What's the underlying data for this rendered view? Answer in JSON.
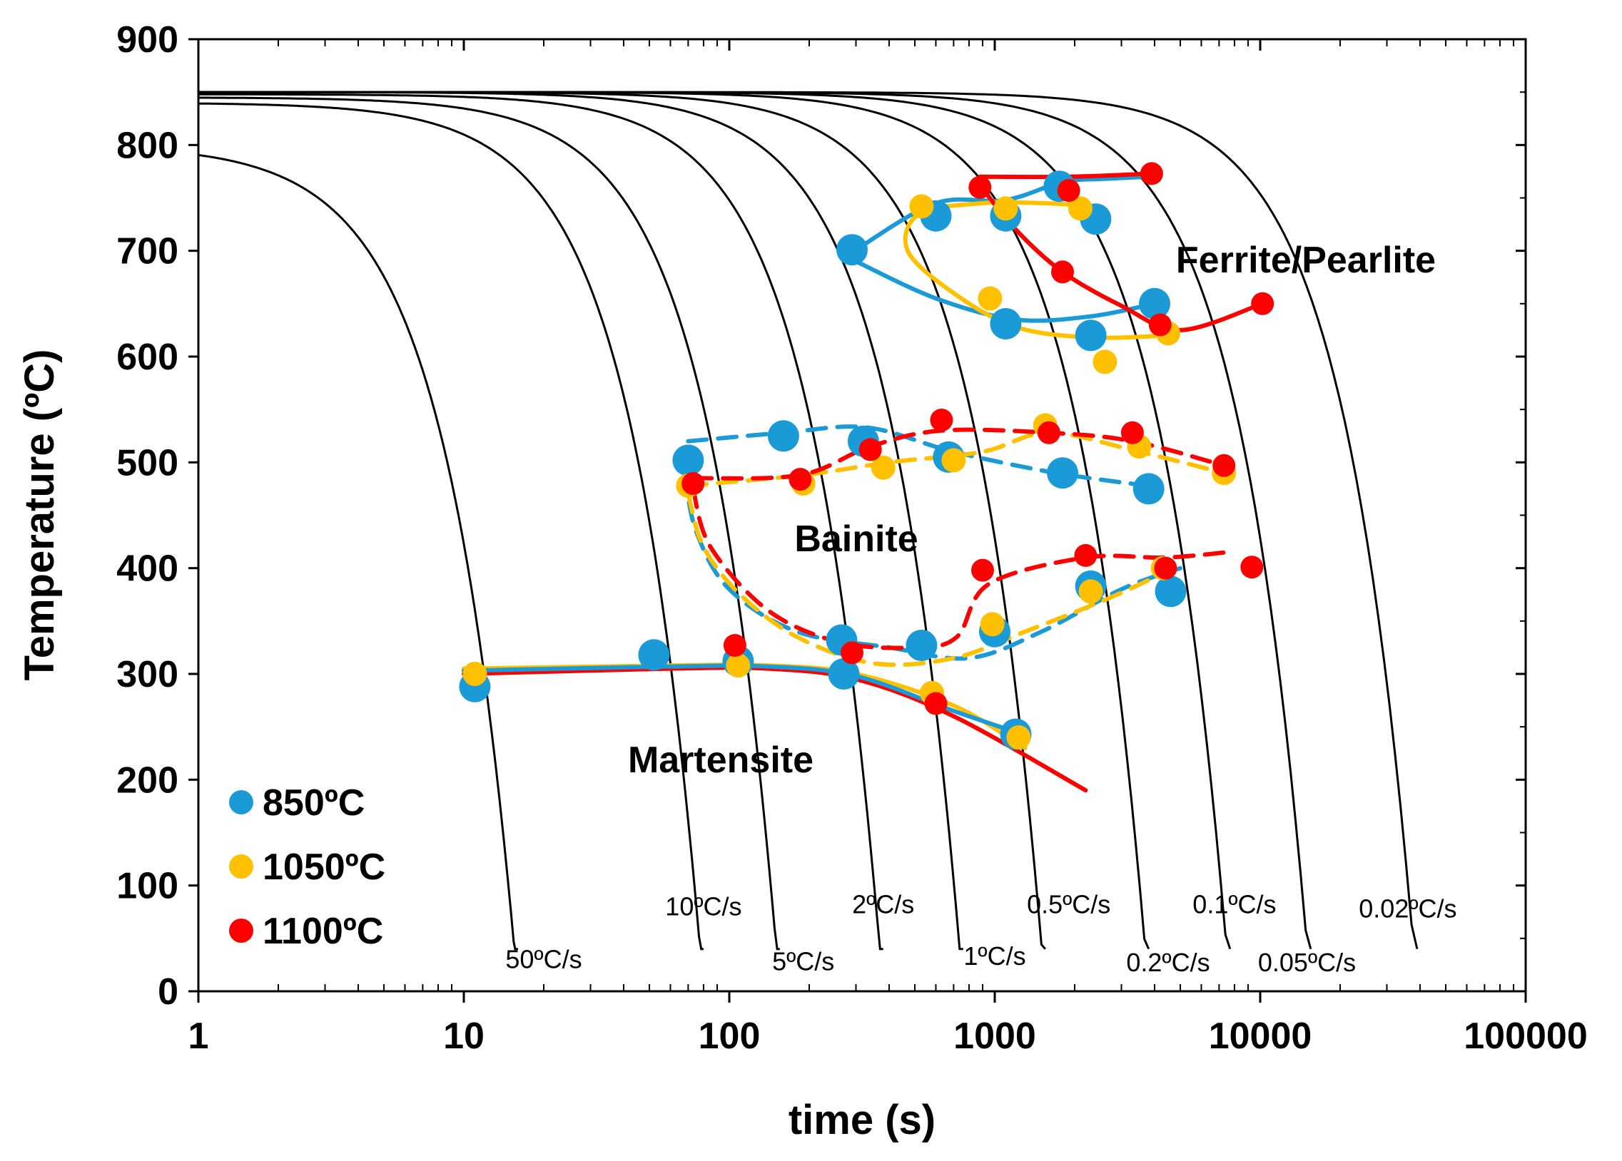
{
  "chart_data": {
    "type": "line",
    "title": "",
    "xlabel": "time (s)",
    "ylabel": "Temperature (ºC)",
    "xscale": "log",
    "xlim": [
      1,
      100000
    ],
    "ylim": [
      0,
      900
    ],
    "x_ticks": [
      1,
      10,
      100,
      1000,
      10000,
      100000
    ],
    "x_tick_labels": [
      "1",
      "10",
      "100",
      "1000",
      "10000",
      "100000"
    ],
    "y_ticks": [
      0,
      100,
      200,
      300,
      400,
      500,
      600,
      700,
      800,
      900
    ],
    "y_tick_labels": [
      "0",
      "100",
      "200",
      "300",
      "400",
      "500",
      "600",
      "700",
      "800",
      "900"
    ],
    "cooling_curves": [
      {
        "label": "50ºC/s",
        "t_end": 16,
        "T_start": 800,
        "label_t": 20,
        "label_T": 30
      },
      {
        "label": "10ºC/s",
        "t_end": 80,
        "T_start": 840,
        "label_t": 80,
        "label_T": 80
      },
      {
        "label": "5ºC/s",
        "t_end": 155,
        "T_start": 845,
        "label_t": 190,
        "label_T": 28
      },
      {
        "label": "2ºC/s",
        "t_end": 380,
        "T_start": 848,
        "label_t": 380,
        "label_T": 82
      },
      {
        "label": "1ºC/s",
        "t_end": 760,
        "T_start": 850,
        "label_t": 1000,
        "label_T": 33
      },
      {
        "label": "0.5ºC/s",
        "t_end": 1550,
        "T_start": 850,
        "label_t": 1900,
        "label_T": 82
      },
      {
        "label": "0.2ºC/s",
        "t_end": 3800,
        "T_start": 850,
        "label_t": 4500,
        "label_T": 27
      },
      {
        "label": "0.1ºC/s",
        "t_end": 7700,
        "T_start": 850,
        "label_t": 8000,
        "label_T": 82
      },
      {
        "label": "0.05ºC/s",
        "t_end": 15500,
        "T_start": 850,
        "label_t": 15000,
        "label_T": 27
      },
      {
        "label": "0.02ºC/s",
        "t_end": 39000,
        "T_start": 850,
        "label_t": 36000,
        "label_T": 78
      }
    ],
    "series": [
      {
        "name": "850ºC",
        "color": "#1a9ad6",
        "points": [
          [
            11,
            288
          ],
          [
            52,
            318
          ],
          [
            108,
            312
          ],
          [
            265,
            332
          ],
          [
            270,
            300
          ],
          [
            530,
            327
          ],
          [
            1000,
            340
          ],
          [
            1200,
            243
          ],
          [
            70,
            502
          ],
          [
            160,
            525
          ],
          [
            320,
            520
          ],
          [
            670,
            505
          ],
          [
            1800,
            490
          ],
          [
            3800,
            475
          ],
          [
            2300,
            383
          ],
          [
            4600,
            378
          ],
          [
            290,
            701
          ],
          [
            600,
            733
          ],
          [
            1100,
            733
          ],
          [
            1750,
            761
          ],
          [
            2400,
            730
          ],
          [
            1100,
            631
          ],
          [
            2300,
            620
          ],
          [
            4000,
            650
          ]
        ]
      },
      {
        "name": "1050ºC",
        "color": "#ffc000",
        "points": [
          [
            11,
            300
          ],
          [
            108,
            308
          ],
          [
            580,
            282
          ],
          [
            1230,
            240
          ],
          [
            70,
            478
          ],
          [
            190,
            480
          ],
          [
            380,
            495
          ],
          [
            700,
            502
          ],
          [
            1550,
            535
          ],
          [
            3500,
            515
          ],
          [
            7300,
            490
          ],
          [
            980,
            347
          ],
          [
            2300,
            378
          ],
          [
            4300,
            400
          ],
          [
            530,
            742
          ],
          [
            1100,
            740
          ],
          [
            2100,
            740
          ],
          [
            960,
            655
          ],
          [
            2600,
            595
          ],
          [
            4500,
            622
          ]
        ]
      },
      {
        "name": "1100ºC",
        "color": "#ff0000",
        "points": [
          [
            105,
            327
          ],
          [
            290,
            320
          ],
          [
            600,
            272
          ],
          [
            73,
            480
          ],
          [
            185,
            484
          ],
          [
            340,
            512
          ],
          [
            630,
            540
          ],
          [
            1600,
            528
          ],
          [
            3300,
            528
          ],
          [
            7300,
            497
          ],
          [
            900,
            398
          ],
          [
            2200,
            412
          ],
          [
            4400,
            400
          ],
          [
            9300,
            401
          ],
          [
            880,
            760
          ],
          [
            1900,
            757
          ],
          [
            3900,
            773
          ],
          [
            1800,
            680
          ],
          [
            4200,
            630
          ],
          [
            10200,
            650
          ]
        ]
      }
    ],
    "boundaries": [
      {
        "color": "#ff0000",
        "dashed": false,
        "pts": [
          [
            10,
            300
          ],
          [
            60,
            305
          ],
          [
            140,
            305
          ],
          [
            300,
            295
          ],
          [
            700,
            260
          ],
          [
            2200,
            190
          ]
        ]
      },
      {
        "color": "#ffc000",
        "dashed": false,
        "pts": [
          [
            10,
            305
          ],
          [
            60,
            308
          ],
          [
            140,
            308
          ],
          [
            300,
            300
          ],
          [
            700,
            270
          ],
          [
            1300,
            230
          ]
        ]
      },
      {
        "color": "#1a9ad6",
        "dashed": false,
        "pts": [
          [
            10,
            303
          ],
          [
            60,
            307
          ],
          [
            140,
            307
          ],
          [
            300,
            298
          ],
          [
            700,
            265
          ],
          [
            1200,
            245
          ]
        ]
      },
      {
        "color": "#1a9ad6",
        "dashed": true,
        "pts": [
          [
            70,
            520
          ],
          [
            160,
            528
          ],
          [
            330,
            533
          ],
          [
            700,
            510
          ],
          [
            1700,
            490
          ],
          [
            4000,
            477
          ]
        ]
      },
      {
        "color": "#1a9ad6",
        "dashed": true,
        "pts": [
          [
            68,
            490
          ],
          [
            75,
            435
          ],
          [
            100,
            380
          ],
          [
            180,
            340
          ],
          [
            400,
            325
          ],
          [
            800,
            315
          ],
          [
            1500,
            340
          ],
          [
            3000,
            380
          ],
          [
            5000,
            400
          ]
        ]
      },
      {
        "color": "#ffc000",
        "dashed": true,
        "pts": [
          [
            70,
            478
          ],
          [
            190,
            488
          ],
          [
            400,
            500
          ],
          [
            900,
            510
          ],
          [
            1600,
            528
          ],
          [
            3500,
            510
          ],
          [
            7300,
            490
          ]
        ]
      },
      {
        "color": "#ffc000",
        "dashed": true,
        "pts": [
          [
            70,
            470
          ],
          [
            80,
            420
          ],
          [
            110,
            375
          ],
          [
            180,
            335
          ],
          [
            350,
            310
          ],
          [
            700,
            315
          ],
          [
            1300,
            340
          ],
          [
            2600,
            370
          ],
          [
            4300,
            395
          ]
        ]
      },
      {
        "color": "#ff0000",
        "dashed": true,
        "pts": [
          [
            73,
            485
          ],
          [
            185,
            488
          ],
          [
            340,
            515
          ],
          [
            630,
            530
          ],
          [
            1600,
            528
          ],
          [
            3300,
            520
          ],
          [
            7300,
            497
          ]
        ]
      },
      {
        "color": "#ff0000",
        "dashed": true,
        "pts": [
          [
            73,
            475
          ],
          [
            85,
            420
          ],
          [
            140,
            360
          ],
          [
            260,
            330
          ],
          [
            500,
            325
          ],
          [
            720,
            335
          ],
          [
            950,
            385
          ],
          [
            2200,
            410
          ],
          [
            4400,
            410
          ],
          [
            7500,
            415
          ]
        ]
      },
      {
        "color": "#1a9ad6",
        "dashed": false,
        "pts": [
          [
            300,
            701
          ],
          [
            600,
            745
          ],
          [
            1100,
            748
          ],
          [
            1800,
            765
          ],
          [
            2600,
            768
          ],
          [
            3800,
            770
          ]
        ]
      },
      {
        "color": "#1a9ad6",
        "dashed": false,
        "pts": [
          [
            300,
            690
          ],
          [
            600,
            655
          ],
          [
            1200,
            635
          ],
          [
            2300,
            638
          ],
          [
            4000,
            650
          ]
        ]
      },
      {
        "color": "#ffc000",
        "dashed": false,
        "pts": [
          [
            4500,
            620
          ],
          [
            2300,
            618
          ],
          [
            1200,
            628
          ],
          [
            700,
            660
          ],
          [
            470,
            700
          ],
          [
            520,
            735
          ],
          [
            900,
            745
          ],
          [
            1500,
            745
          ],
          [
            2100,
            743
          ]
        ]
      },
      {
        "color": "#ff0000",
        "dashed": false,
        "pts": [
          [
            880,
            770
          ],
          [
            1900,
            770
          ],
          [
            3900,
            773
          ]
        ]
      },
      {
        "color": "#ff0000",
        "dashed": false,
        "pts": [
          [
            880,
            762
          ],
          [
            1200,
            720
          ],
          [
            1800,
            680
          ],
          [
            3000,
            648
          ],
          [
            5000,
            625
          ],
          [
            10200,
            650
          ]
        ]
      }
    ],
    "region_labels": [
      {
        "text": "Ferrite/Pearlite",
        "t": 10000,
        "T": 700
      },
      {
        "text": "Bainite",
        "t": 370,
        "T": 425
      },
      {
        "text": "Martensite",
        "t": 130,
        "T": 215
      }
    ],
    "legend": {
      "position": "bottom-left",
      "entries": [
        {
          "label": "850ºC",
          "color": "#1a9ad6"
        },
        {
          "label": "1050ºC",
          "color": "#ffc000"
        },
        {
          "label": "1100ºC",
          "color": "#ff0000"
        }
      ]
    }
  }
}
